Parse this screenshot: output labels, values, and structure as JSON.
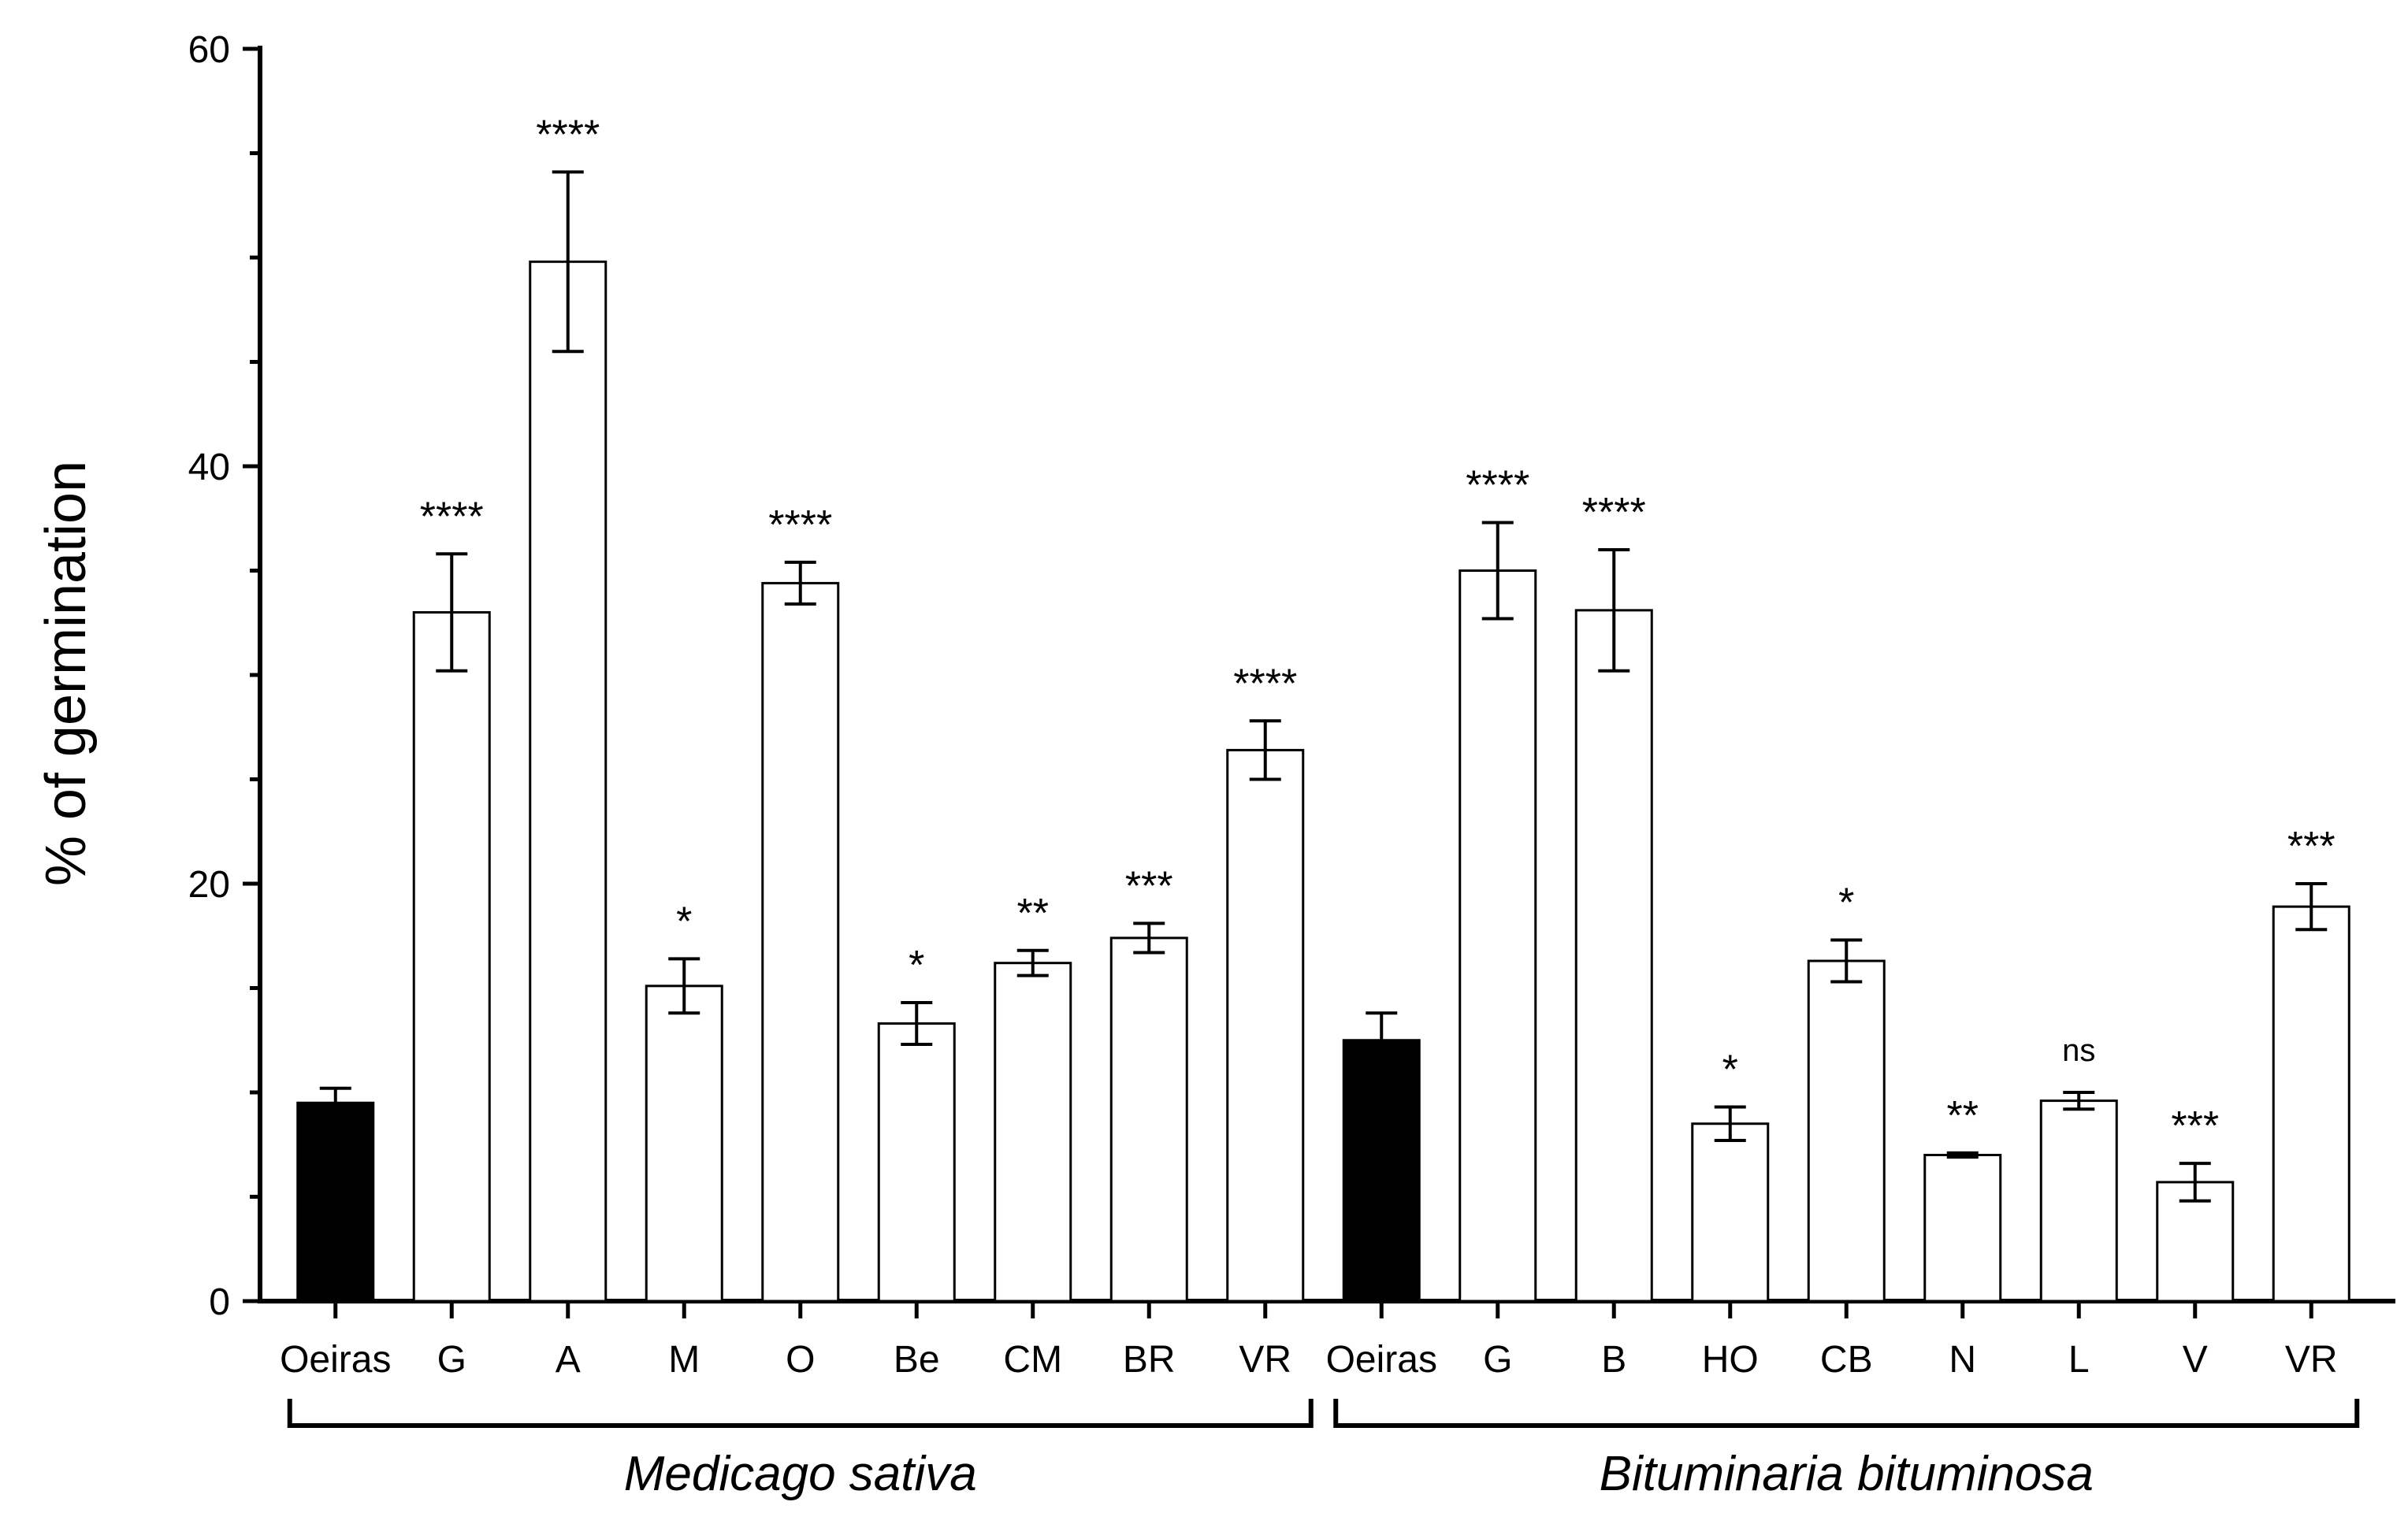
{
  "chart_data": {
    "type": "bar",
    "ylabel": "% of germination",
    "ylim": [
      0,
      60
    ],
    "yticks": [
      0,
      20,
      40,
      60
    ],
    "bars": [
      {
        "label": "Oeiras",
        "value": 9.5,
        "error": 0.7,
        "sig": "",
        "fill": "#000000",
        "group": 0
      },
      {
        "label": "G",
        "value": 33.0,
        "error": 2.8,
        "sig": "****",
        "fill": "#ffffff",
        "group": 0
      },
      {
        "label": "A",
        "value": 49.8,
        "error": 4.3,
        "sig": "****",
        "fill": "#ffffff",
        "group": 0
      },
      {
        "label": "M",
        "value": 15.1,
        "error": 1.3,
        "sig": "*",
        "fill": "#ffffff",
        "group": 0
      },
      {
        "label": "O",
        "value": 34.4,
        "error": 1.0,
        "sig": "****",
        "fill": "#ffffff",
        "group": 0
      },
      {
        "label": "Be",
        "value": 13.3,
        "error": 1.0,
        "sig": "*",
        "fill": "#ffffff",
        "group": 0
      },
      {
        "label": "CM",
        "value": 16.2,
        "error": 0.6,
        "sig": "**",
        "fill": "#ffffff",
        "group": 0
      },
      {
        "label": "BR",
        "value": 17.4,
        "error": 0.7,
        "sig": "***",
        "fill": "#ffffff",
        "group": 0
      },
      {
        "label": "VR",
        "value": 26.4,
        "error": 1.4,
        "sig": "****",
        "fill": "#ffffff",
        "group": 0
      },
      {
        "label": "Oeiras",
        "value": 12.5,
        "error": 1.3,
        "sig": "",
        "fill": "#000000",
        "group": 1
      },
      {
        "label": "G",
        "value": 35.0,
        "error": 2.3,
        "sig": "****",
        "fill": "#ffffff",
        "group": 1
      },
      {
        "label": "B",
        "value": 33.1,
        "error": 2.9,
        "sig": "****",
        "fill": "#ffffff",
        "group": 1
      },
      {
        "label": "HO",
        "value": 8.5,
        "error": 0.8,
        "sig": "*",
        "fill": "#ffffff",
        "group": 1
      },
      {
        "label": "CB",
        "value": 16.3,
        "error": 1.0,
        "sig": "*",
        "fill": "#ffffff",
        "group": 1
      },
      {
        "label": "N",
        "value": 7.0,
        "error": 0.1,
        "sig": "**",
        "fill": "#ffffff",
        "group": 1
      },
      {
        "label": "L",
        "value": 9.6,
        "error": 0.4,
        "sig": "ns",
        "fill": "#ffffff",
        "group": 1
      },
      {
        "label": "V",
        "value": 5.7,
        "error": 0.9,
        "sig": "***",
        "fill": "#ffffff",
        "group": 1
      },
      {
        "label": "VR",
        "value": 18.9,
        "error": 1.1,
        "sig": "***",
        "fill": "#ffffff",
        "group": 1
      }
    ],
    "groups": [
      "Medicago sativa",
      "Bituminaria bituminosa"
    ]
  }
}
